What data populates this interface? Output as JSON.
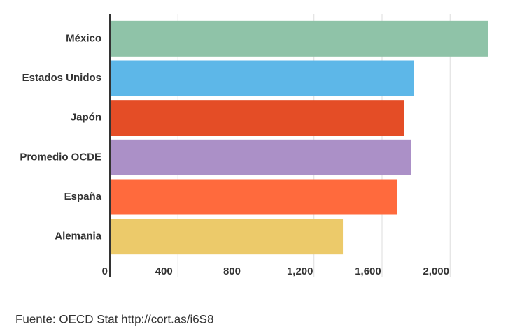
{
  "chart_data": {
    "type": "bar",
    "orientation": "horizontal",
    "categories": [
      "México",
      "Estados Unidos",
      "Japón",
      "Promedio OCDE",
      "España",
      "Alemania"
    ],
    "values": [
      2225,
      1789,
      1728,
      1769,
      1687,
      1370
    ],
    "colors": [
      "#8fc3a8",
      "#5db7e8",
      "#e44d26",
      "#ab90c7",
      "#ff6a3d",
      "#ecca6a"
    ],
    "xlim": [
      0,
      2250
    ],
    "xticks": [
      0,
      400,
      800,
      {
        "value": 1200,
        "label": "1,200"
      },
      {
        "value": 1600,
        "label": "1,600"
      },
      {
        "value": 2000,
        "label": "2,000"
      }
    ],
    "grid": true,
    "source": "Fuente: OECD Stat http://cort.as/i6S8"
  }
}
